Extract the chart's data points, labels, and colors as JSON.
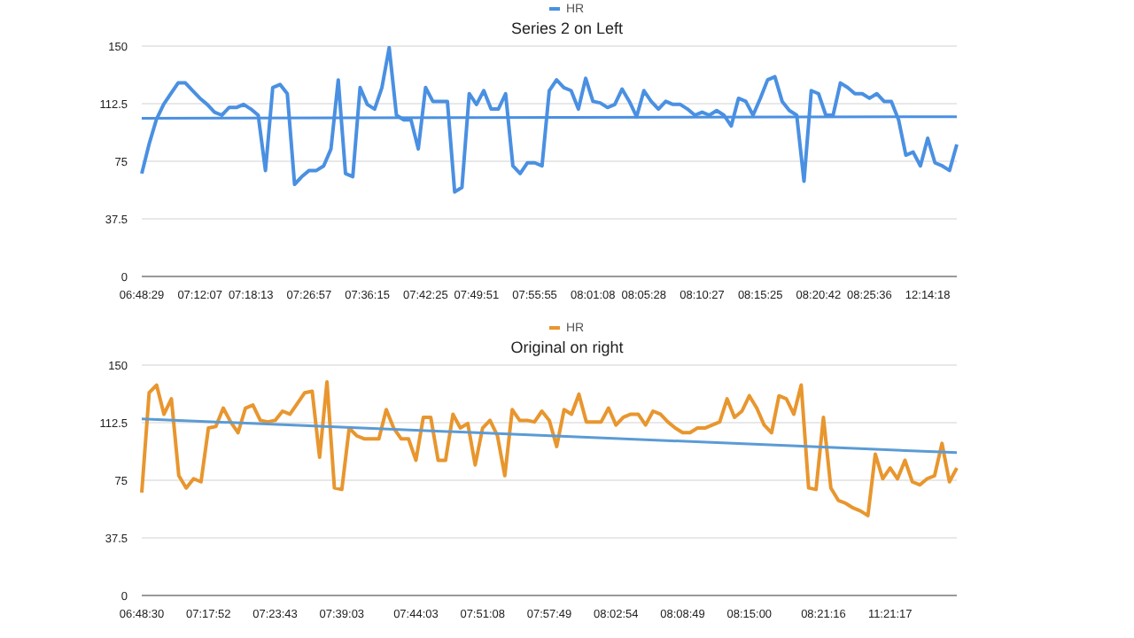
{
  "chart_data": [
    {
      "type": "line",
      "title": "Series 2 on Left",
      "legend": "top",
      "grid": "y",
      "ylim": [
        0,
        150
      ],
      "yticks": [
        0,
        37.5,
        75,
        112.5,
        150
      ],
      "categories": [
        "06:48:29",
        null,
        null,
        null,
        null,
        null,
        null,
        null,
        "07:12:07",
        null,
        null,
        null,
        null,
        null,
        null,
        "07:18:13",
        null,
        null,
        null,
        null,
        null,
        null,
        null,
        "07:26:57",
        null,
        null,
        null,
        null,
        null,
        null,
        null,
        "07:36:15",
        null,
        null,
        null,
        null,
        null,
        null,
        null,
        "07:42:25",
        null,
        null,
        null,
        null,
        null,
        null,
        "07:49:51",
        null,
        null,
        null,
        null,
        null,
        null,
        null,
        "07:55:55",
        null,
        null,
        null,
        null,
        null,
        null,
        null,
        "08:01:08",
        null,
        null,
        null,
        null,
        null,
        null,
        "08:05:28",
        null,
        null,
        null,
        null,
        null,
        null,
        null,
        "08:10:27",
        null,
        null,
        null,
        null,
        null,
        null,
        null,
        "08:15:25",
        null,
        null,
        null,
        null,
        null,
        null,
        null,
        "08:20:42",
        null,
        null,
        null,
        null,
        null,
        null,
        "08:25:36",
        null,
        null,
        null,
        null,
        null,
        null,
        null,
        "12:14:18",
        null,
        null,
        null,
        null
      ],
      "series": [
        {
          "name": "HR",
          "color": "#4a90e2",
          "values": [
            67,
            86,
            102,
            112,
            119,
            126,
            126,
            121,
            116,
            112,
            107,
            105,
            110,
            110,
            112,
            109,
            105,
            69,
            123,
            125,
            119,
            60,
            65,
            69,
            69,
            72,
            83,
            128,
            67,
            65,
            123,
            112,
            109,
            123,
            149,
            105,
            102,
            102,
            83,
            123,
            114,
            114,
            114,
            55,
            58,
            119,
            112,
            121,
            109,
            109,
            119,
            72,
            67,
            74,
            74,
            72,
            121,
            128,
            123,
            121,
            109,
            129,
            114,
            113,
            110,
            112,
            122,
            114,
            104,
            121,
            114,
            109,
            114,
            112,
            112,
            109,
            105,
            107,
            105,
            108,
            105,
            98,
            116,
            114,
            105,
            116,
            128,
            130,
            114,
            108,
            105,
            62,
            121,
            119,
            105,
            105,
            126,
            123,
            119,
            119,
            116,
            119,
            114,
            114,
            102,
            79,
            81,
            72,
            90,
            74,
            72,
            69,
            86
          ]
        },
        {
          "color": "#4a90e2",
          "values": [
            103,
            null,
            null,
            null,
            null,
            null,
            null,
            null,
            null,
            null,
            null,
            null,
            null,
            null,
            null,
            null,
            null,
            null,
            null,
            null,
            null,
            null,
            null,
            null,
            null,
            null,
            null,
            null,
            null,
            null,
            null,
            null,
            null,
            null,
            null,
            null,
            null,
            null,
            null,
            null,
            null,
            null,
            null,
            null,
            null,
            null,
            null,
            null,
            null,
            null,
            null,
            null,
            null,
            null,
            null,
            null,
            null,
            null,
            null,
            null,
            null,
            null,
            null,
            null,
            null,
            null,
            null,
            null,
            null,
            null,
            null,
            null,
            null,
            null,
            null,
            null,
            null,
            null,
            null,
            null,
            null,
            null,
            null,
            null,
            null,
            null,
            null,
            null,
            null,
            null,
            null,
            null,
            null,
            null,
            null,
            null,
            null,
            null,
            null,
            null,
            null,
            null,
            null,
            null,
            null,
            null,
            null,
            null,
            null,
            null,
            null,
            null,
            104
          ]
        }
      ]
    },
    {
      "type": "line",
      "title": "Original on right",
      "legend": "top",
      "grid": "y",
      "ylim": [
        0,
        150
      ],
      "yticks": [
        0,
        37.5,
        75,
        112.5,
        150
      ],
      "categories": [
        "06:48:30",
        null,
        null,
        null,
        null,
        null,
        null,
        null,
        null,
        "07:17:52",
        null,
        null,
        null,
        null,
        null,
        null,
        null,
        null,
        "07:23:43",
        null,
        null,
        null,
        null,
        null,
        null,
        null,
        null,
        "07:39:03",
        null,
        null,
        null,
        null,
        null,
        null,
        null,
        null,
        null,
        "07:44:03",
        null,
        null,
        null,
        null,
        null,
        null,
        null,
        null,
        "07:51:08",
        null,
        null,
        null,
        null,
        null,
        null,
        null,
        null,
        "07:57:49",
        null,
        null,
        null,
        null,
        null,
        null,
        null,
        null,
        "08:02:54",
        null,
        null,
        null,
        null,
        null,
        null,
        null,
        null,
        "08:08:49",
        null,
        null,
        null,
        null,
        null,
        null,
        null,
        null,
        "08:15:00",
        null,
        null,
        null,
        null,
        null,
        null,
        null,
        null,
        null,
        "08:21:16",
        null,
        null,
        null,
        null,
        null,
        null,
        null,
        null,
        "11:21:17",
        null,
        null,
        null,
        null,
        null,
        null,
        null,
        null,
        null
      ],
      "series": [
        {
          "name": "HR",
          "color": "#e8962e",
          "values": [
            67,
            132,
            137,
            118,
            128,
            78,
            70,
            76,
            74,
            109,
            110,
            122,
            113,
            106,
            122,
            124,
            114,
            113,
            114,
            120,
            118,
            125,
            132,
            133,
            90,
            139,
            70,
            69,
            109,
            104,
            102,
            102,
            102,
            121,
            109,
            102,
            102,
            88,
            116,
            116,
            88,
            88,
            118,
            109,
            112,
            85,
            109,
            114,
            104,
            78,
            121,
            114,
            114,
            113,
            120,
            114,
            97,
            121,
            118,
            131,
            113,
            113,
            113,
            122,
            111,
            116,
            118,
            118,
            111,
            120,
            118,
            113,
            109,
            106,
            106,
            109,
            109,
            111,
            113,
            128,
            116,
            120,
            130,
            122,
            111,
            106,
            130,
            128,
            118,
            137,
            70,
            69,
            116,
            70,
            62,
            60,
            57,
            55,
            52,
            92,
            76,
            83,
            76,
            88,
            74,
            72,
            76,
            78,
            99,
            74,
            83
          ]
        },
        {
          "color": "#5b9bd5",
          "values": [
            115,
            null,
            null,
            null,
            null,
            null,
            null,
            null,
            null,
            null,
            null,
            null,
            null,
            null,
            null,
            null,
            null,
            null,
            null,
            null,
            null,
            null,
            null,
            null,
            null,
            null,
            null,
            null,
            null,
            null,
            null,
            null,
            null,
            null,
            null,
            null,
            null,
            null,
            null,
            null,
            null,
            null,
            null,
            null,
            null,
            null,
            null,
            null,
            null,
            null,
            null,
            null,
            null,
            null,
            null,
            null,
            null,
            null,
            null,
            null,
            null,
            null,
            null,
            null,
            null,
            null,
            null,
            null,
            null,
            null,
            null,
            null,
            null,
            null,
            null,
            null,
            null,
            null,
            null,
            null,
            null,
            null,
            null,
            null,
            null,
            null,
            null,
            null,
            null,
            null,
            null,
            null,
            null,
            null,
            null,
            null,
            null,
            null,
            null,
            null,
            null,
            null,
            null,
            null,
            null,
            null,
            null,
            null,
            null,
            null,
            93
          ]
        }
      ]
    }
  ]
}
